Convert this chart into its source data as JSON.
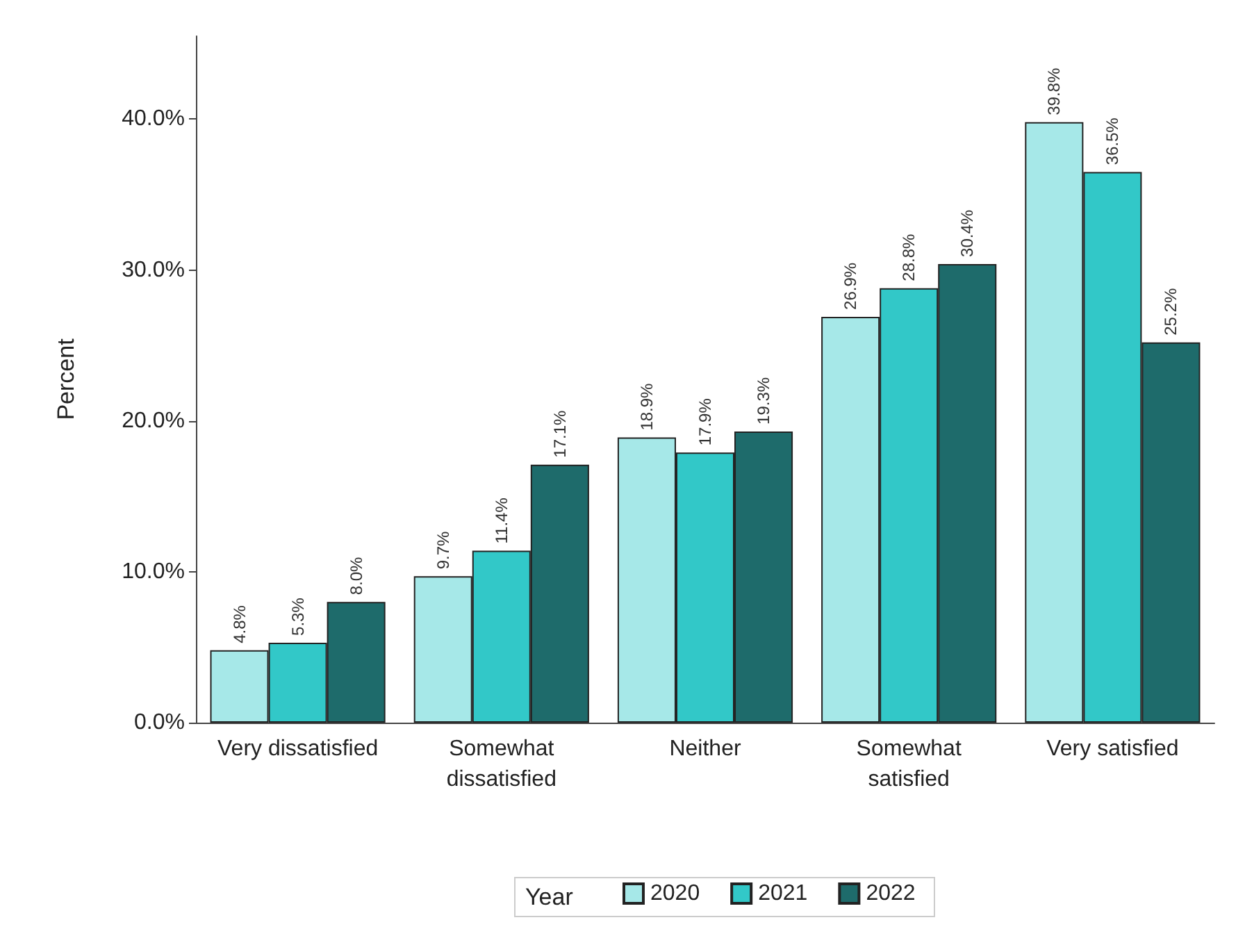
{
  "chart_data": {
    "type": "bar",
    "categories": [
      "Very dissatisfied",
      "Somewhat\ndissatisfied",
      "Neither",
      "Somewhat\nsatisfied",
      "Very satisfied"
    ],
    "series": [
      {
        "name": "2020",
        "color": "#a6e8e8",
        "values": [
          4.8,
          9.7,
          18.9,
          26.9,
          39.8
        ],
        "value_labels": [
          "4.8%",
          "9.7%",
          "18.9%",
          "26.9%",
          "39.8%"
        ]
      },
      {
        "name": "2021",
        "color": "#32c8c8",
        "values": [
          5.3,
          11.4,
          17.9,
          28.8,
          36.5
        ],
        "value_labels": [
          "5.3%",
          "11.4%",
          "17.9%",
          "28.8%",
          "36.5%"
        ]
      },
      {
        "name": "2022",
        "color": "#1e6b6b",
        "values": [
          8.0,
          17.1,
          19.3,
          30.4,
          25.2
        ],
        "value_labels": [
          "8.0%",
          "17.1%",
          "19.3%",
          "30.4%",
          "25.2%"
        ]
      }
    ],
    "ylabel": "Percent",
    "legend_title": "Year",
    "legend": "bottom",
    "grid": false,
    "ylim": [
      0,
      45.5
    ],
    "yticks": [
      {
        "value": 0,
        "label": "0.0%"
      },
      {
        "value": 10,
        "label": "10.0%"
      },
      {
        "value": 20,
        "label": "20.0%"
      },
      {
        "value": 30,
        "label": "30.0%"
      },
      {
        "value": 40,
        "label": "40.0%"
      }
    ]
  }
}
